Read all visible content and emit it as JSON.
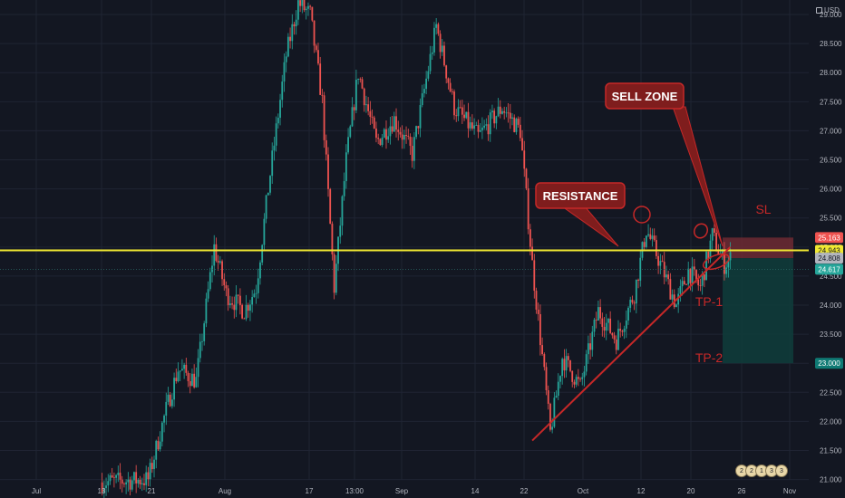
{
  "currency": "USD",
  "colors": {
    "background": "#131722",
    "grid": "#1f2433",
    "bull": "#26a69a",
    "bear": "#ef5350",
    "resistance_line": "#f0e832",
    "annotation": "#c62828",
    "annotation_box": "#7f1d1d",
    "annotation_text": "#ffffff",
    "stop_zone": "#6e2a33",
    "target_zone": "#0f3b3a"
  },
  "annotations": {
    "sell_zone": "SELL ZONE",
    "resistance": "RESISTANCE",
    "sl": "SL",
    "tp1": "TP-1",
    "tp2": "TP-2"
  },
  "events": [
    "2",
    "2",
    "1",
    "3",
    "3"
  ],
  "chart_data": {
    "type": "candlestick",
    "y_axis": {
      "ticks": [
        "21.000",
        "21.500",
        "22.000",
        "22.500",
        "23.000",
        "23.500",
        "24.000",
        "24.500",
        "25.000",
        "25.500",
        "26.000",
        "26.500",
        "27.000",
        "27.500",
        "28.000",
        "28.500",
        "29.000"
      ],
      "range": [
        20.9,
        29.25
      ]
    },
    "x_axis": {
      "ticks": [
        "Jul",
        "13",
        "21",
        "Aug",
        "17",
        "13:00",
        "Sep",
        "14",
        "22",
        "Oct",
        "12",
        "20",
        "26",
        "Nov"
      ]
    },
    "price_labels": [
      {
        "value": "25.163",
        "kind": "stop"
      },
      {
        "value": "24.943",
        "kind": "current"
      },
      {
        "value": "24.808",
        "kind": "entry"
      },
      {
        "value": "24.617",
        "kind": "last"
      },
      {
        "value": "23.000",
        "kind": "target"
      }
    ],
    "resistance_level": 24.943,
    "trendline": {
      "from": [
        "22",
        21.67
      ],
      "to": [
        "Oct 26",
        25.0
      ]
    },
    "path_points": [
      [
        "Jul 13",
        20.95
      ],
      [
        "Jul 21",
        21.0
      ],
      [
        "Jul 24",
        22.2
      ],
      [
        "Jul 26",
        22.9
      ],
      [
        "Jul 29",
        22.7
      ],
      [
        "Aug 1",
        25.0
      ],
      [
        "Aug 3",
        24.2
      ],
      [
        "Aug 6",
        23.9
      ],
      [
        "Aug 8",
        24.3
      ],
      [
        "Aug 10",
        26.0
      ],
      [
        "Aug 13",
        28.3
      ],
      [
        "Aug 15",
        29.2
      ],
      [
        "Aug 17",
        29.0
      ],
      [
        "Aug 19",
        27.5
      ],
      [
        "Aug 21",
        24.3
      ],
      [
        "Aug 23",
        26.5
      ],
      [
        "Aug 25",
        28.0
      ],
      [
        "Aug 28",
        26.8
      ],
      [
        "Aug 31",
        27.2
      ],
      [
        "Sep 3",
        26.6
      ],
      [
        "Sep 7",
        28.8
      ],
      [
        "Sep 10",
        27.4
      ],
      [
        "Sep 14",
        26.9
      ],
      [
        "Sep 18",
        27.4
      ],
      [
        "Sep 21",
        27.0
      ],
      [
        "Sep 23",
        24.7
      ],
      [
        "Sep 25",
        22.8
      ],
      [
        "Sep 26",
        21.8
      ],
      [
        "Sep 28",
        23.1
      ],
      [
        "Oct 1",
        22.6
      ],
      [
        "Oct 4",
        23.9
      ],
      [
        "Oct 7",
        23.4
      ],
      [
        "Oct 10",
        24.2
      ],
      [
        "Oct 12",
        25.3
      ],
      [
        "Oct 14",
        24.8
      ],
      [
        "Oct 17",
        24.0
      ],
      [
        "Oct 19",
        24.6
      ],
      [
        "Oct 21",
        24.3
      ],
      [
        "Oct 23",
        25.2
      ],
      [
        "Oct 25",
        24.7
      ],
      [
        "Oct 26",
        24.8
      ]
    ],
    "trade_box": {
      "stop": 25.163,
      "entry": 24.808,
      "target": 23.0
    }
  }
}
